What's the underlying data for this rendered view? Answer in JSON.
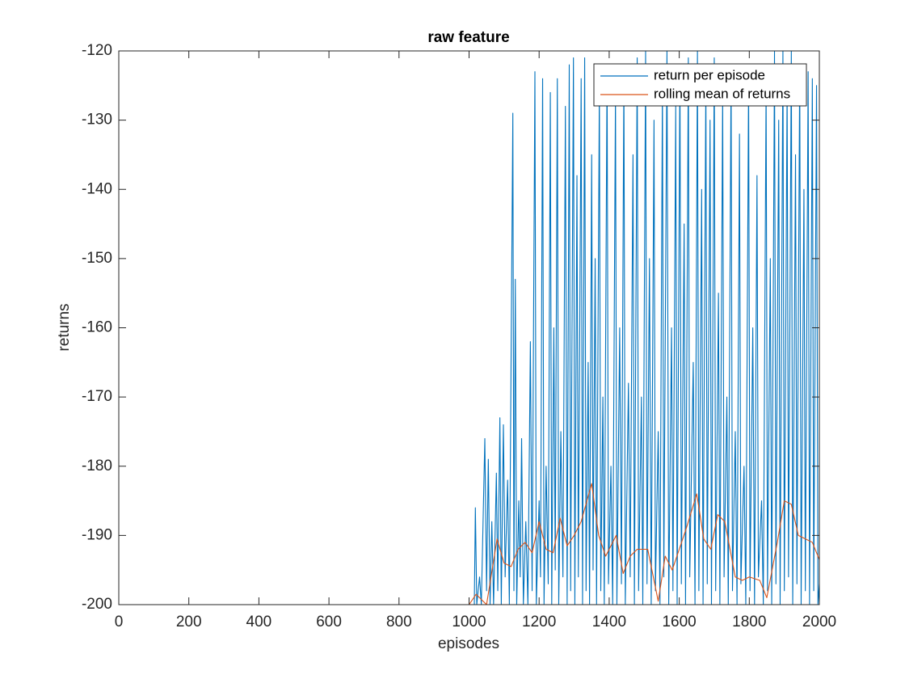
{
  "chart_data": {
    "type": "line",
    "title": "raw feature",
    "xlabel": "episodes",
    "ylabel": "returns",
    "xlim": [
      0,
      2000
    ],
    "ylim": [
      -200,
      -120
    ],
    "xticks": [
      0,
      200,
      400,
      600,
      800,
      1000,
      1200,
      1400,
      1600,
      1800,
      2000
    ],
    "yticks": [
      -200,
      -190,
      -180,
      -170,
      -160,
      -150,
      -140,
      -130,
      -120
    ],
    "legend": "northeast",
    "grid": false,
    "series": [
      {
        "name": "return per episode",
        "color": "#0072bd",
        "x": [
          0,
          1015,
          1018,
          1022,
          1030,
          1035,
          1045,
          1050,
          1055,
          1060,
          1065,
          1070,
          1078,
          1082,
          1088,
          1092,
          1098,
          1103,
          1110,
          1115,
          1125,
          1128,
          1132,
          1136,
          1142,
          1146,
          1150,
          1155,
          1162,
          1168,
          1175,
          1180,
          1188,
          1192,
          1200,
          1204,
          1210,
          1214,
          1220,
          1226,
          1232,
          1236,
          1242,
          1246,
          1252,
          1256,
          1262,
          1268,
          1275,
          1280,
          1286,
          1290,
          1298,
          1302,
          1308,
          1312,
          1320,
          1324,
          1330,
          1334,
          1340,
          1344,
          1350,
          1354,
          1360,
          1364,
          1372,
          1376,
          1382,
          1386,
          1394,
          1398,
          1405,
          1410,
          1418,
          1422,
          1430,
          1435,
          1442,
          1446,
          1455,
          1460,
          1468,
          1472,
          1480,
          1484,
          1492,
          1496,
          1504,
          1508,
          1515,
          1520,
          1528,
          1532,
          1540,
          1545,
          1552,
          1556,
          1565,
          1570,
          1578,
          1582,
          1590,
          1594,
          1602,
          1606,
          1614,
          1618,
          1626,
          1630,
          1640,
          1645,
          1652,
          1656,
          1664,
          1668,
          1676,
          1680,
          1688,
          1692,
          1700,
          1704,
          1712,
          1716,
          1724,
          1728,
          1736,
          1740,
          1748,
          1752,
          1760,
          1765,
          1772,
          1776,
          1785,
          1790,
          1798,
          1802,
          1810,
          1815,
          1822,
          1826,
          1835,
          1840,
          1848,
          1852,
          1860,
          1864,
          1872,
          1876,
          1884,
          1888,
          1896,
          1900,
          1908,
          1912,
          1920,
          1924,
          1932,
          1936,
          1944,
          1948,
          1956,
          1960,
          1968,
          1972,
          1980,
          1984,
          1992,
          1996,
          2000
        ],
        "values": [
          -200,
          -200,
          -186,
          -200,
          -196,
          -200,
          -176,
          -198,
          -179,
          -200,
          -188,
          -200,
          -181,
          -198,
          -173,
          -200,
          -174,
          -196,
          -182,
          -200,
          -129,
          -198,
          -153,
          -200,
          -185,
          -196,
          -176,
          -200,
          -188,
          -200,
          -162,
          -198,
          -123,
          -200,
          -185,
          -196,
          -124,
          -200,
          -180,
          -197,
          -126,
          -200,
          -160,
          -195,
          -124,
          -200,
          -175,
          -196,
          -128,
          -200,
          -122,
          -198,
          -121,
          -200,
          -138,
          -196,
          -124,
          -200,
          -121,
          -198,
          -165,
          -200,
          -135,
          -195,
          -150,
          -200,
          -125,
          -198,
          -170,
          -200,
          -122,
          -197,
          -180,
          -200,
          -126,
          -200,
          -160,
          -197,
          -123,
          -200,
          -168,
          -196,
          -135,
          -200,
          -121,
          -198,
          -170,
          -200,
          -120,
          -197,
          -150,
          -200,
          -130,
          -198,
          -175,
          -200,
          -125,
          -196,
          -120,
          -200,
          -160,
          -198,
          -128,
          -200,
          -122,
          -197,
          -145,
          -200,
          -121,
          -196,
          -165,
          -200,
          -120,
          -198,
          -140,
          -200,
          -124,
          -197,
          -130,
          -200,
          -121,
          -198,
          -155,
          -200,
          -126,
          -196,
          -170,
          -200,
          -123,
          -198,
          -175,
          -200,
          -132,
          -197,
          -180,
          -200,
          -124,
          -198,
          -160,
          -200,
          -138,
          -196,
          -185,
          -200,
          -125,
          -198,
          -150,
          -200,
          -120,
          -197,
          -130,
          -200,
          -120,
          -198,
          -125,
          -196,
          -120,
          -200,
          -135,
          -197,
          -122,
          -200,
          -140,
          -198,
          -123,
          -200,
          -124,
          -198,
          -125,
          -200,
          -197
        ]
      },
      {
        "name": "rolling mean of returns",
        "color": "#d95319",
        "x": [
          0,
          1000,
          1020,
          1050,
          1080,
          1100,
          1120,
          1140,
          1160,
          1180,
          1200,
          1220,
          1240,
          1260,
          1280,
          1300,
          1320,
          1350,
          1370,
          1390,
          1420,
          1440,
          1460,
          1480,
          1510,
          1540,
          1560,
          1580,
          1600,
          1620,
          1650,
          1670,
          1690,
          1710,
          1730,
          1760,
          1780,
          1800,
          1830,
          1850,
          1880,
          1900,
          1920,
          1940,
          1960,
          1980,
          2000
        ],
        "values": [
          -200,
          -200,
          -198.5,
          -200,
          -190.5,
          -194,
          -194.5,
          -192,
          -191,
          -192.5,
          -188,
          -192,
          -192.5,
          -187.5,
          -191.5,
          -190,
          -188,
          -182.5,
          -190,
          -193,
          -190,
          -195.5,
          -193,
          -192,
          -192,
          -199.5,
          -193,
          -195,
          -192,
          -189,
          -184,
          -190.5,
          -192,
          -187,
          -188,
          -196,
          -196.5,
          -196,
          -196.5,
          -199,
          -191,
          -185,
          -185.5,
          -190,
          -190.5,
          -191,
          -193.5
        ]
      }
    ]
  }
}
